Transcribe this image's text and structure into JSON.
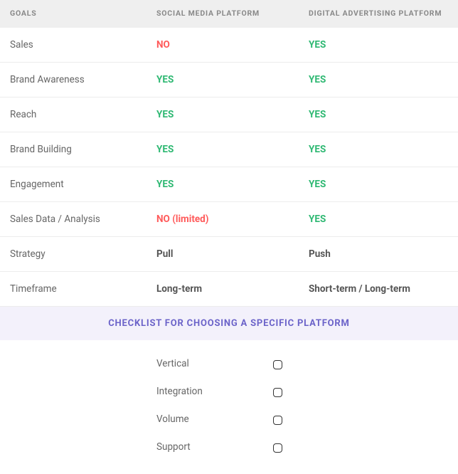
{
  "table": {
    "columns": {
      "goals": "GOALS",
      "social": "SOCIAL MEDIA PLATFORM",
      "digital": "DIGITAL ADVERTISING PLATFORM"
    },
    "rows": [
      {
        "goal": "Sales",
        "social": {
          "text": "NO",
          "style": "no"
        },
        "digital": {
          "text": "YES",
          "style": "yes"
        }
      },
      {
        "goal": "Brand Awareness",
        "social": {
          "text": "YES",
          "style": "yes"
        },
        "digital": {
          "text": "YES",
          "style": "yes"
        }
      },
      {
        "goal": "Reach",
        "social": {
          "text": "YES",
          "style": "yes"
        },
        "digital": {
          "text": "YES",
          "style": "yes"
        }
      },
      {
        "goal": "Brand Building",
        "social": {
          "text": "YES",
          "style": "yes"
        },
        "digital": {
          "text": "YES",
          "style": "yes"
        }
      },
      {
        "goal": "Engagement",
        "social": {
          "text": "YES",
          "style": "yes"
        },
        "digital": {
          "text": "YES",
          "style": "yes"
        }
      },
      {
        "goal": "Sales Data / Analysis",
        "social": {
          "text": "NO (limited)",
          "style": "no"
        },
        "digital": {
          "text": "YES",
          "style": "yes"
        }
      },
      {
        "goal": "Strategy",
        "social": {
          "text": "Pull",
          "style": "plain"
        },
        "digital": {
          "text": "Push",
          "style": "plain"
        }
      },
      {
        "goal": "Timeframe",
        "social": {
          "text": "Long-term",
          "style": "plain"
        },
        "digital": {
          "text": "Short-term / Long-term",
          "style": "plain"
        }
      }
    ]
  },
  "checklist": {
    "title": "CHECKLIST FOR CHOOSING A SPECIFIC PLATFORM",
    "items": [
      {
        "label": "Vertical",
        "checked": false
      },
      {
        "label": "Integration",
        "checked": false
      },
      {
        "label": "Volume",
        "checked": false
      },
      {
        "label": "Support",
        "checked": false
      }
    ]
  },
  "colors": {
    "yes": "#2eb872",
    "no": "#ff5a5a",
    "plain": "#555555",
    "header_bg": "#efefef",
    "checklist_bg": "#f3f1fb",
    "checklist_title": "#6b63c9",
    "border": "#ececec"
  }
}
